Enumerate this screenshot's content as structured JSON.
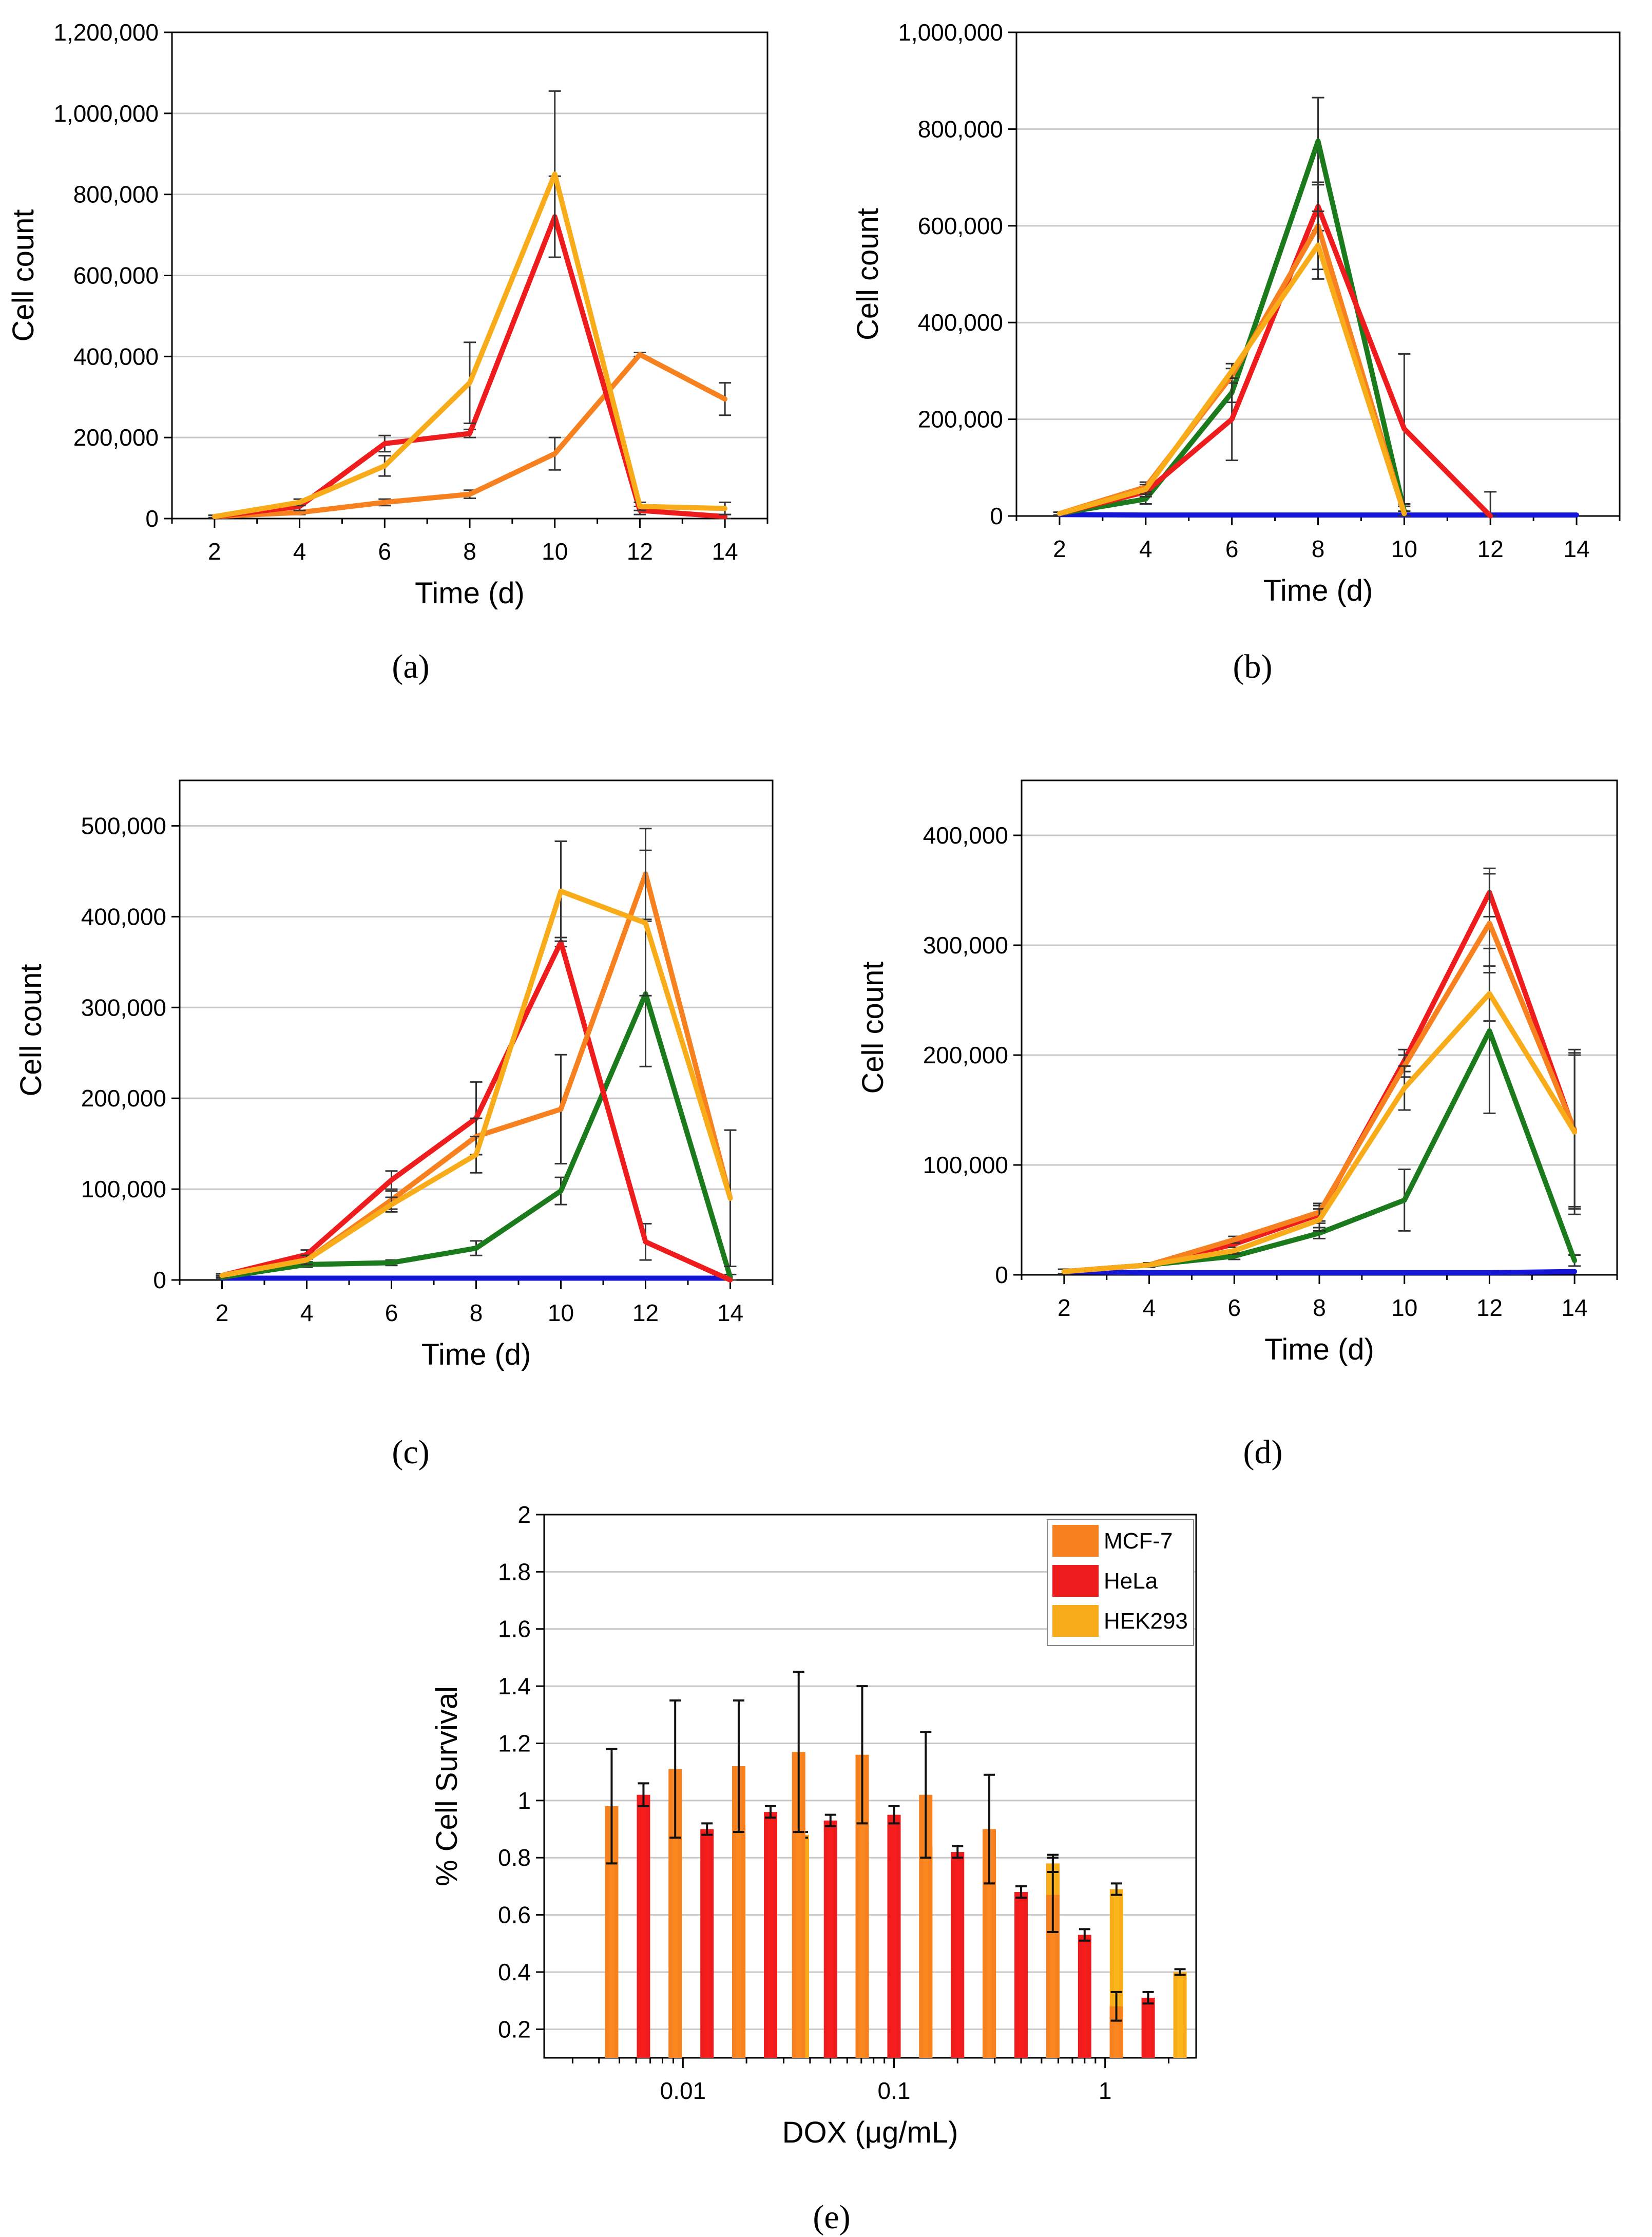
{
  "chart_data": [
    {
      "panel": "a",
      "type": "line",
      "xlabel": "Time (d)",
      "ylabel": "Cell count",
      "x": [
        2,
        4,
        6,
        8,
        10,
        12,
        14
      ],
      "xlim": [
        1,
        15
      ],
      "ylim": [
        0,
        1200000
      ],
      "yticks": [
        0,
        200000,
        400000,
        600000,
        800000,
        1000000,
        1200000
      ],
      "ytick_labels": [
        "0",
        "200,000",
        "400,000",
        "600,000",
        "800,000",
        "1,000,000",
        "1,200,000"
      ],
      "xticks": [
        2,
        4,
        6,
        8,
        10,
        12,
        14
      ],
      "grid": true,
      "series": [
        {
          "name": "orange",
          "color": "#f7801f",
          "values": [
            5000,
            15000,
            40000,
            60000,
            160000,
            405000,
            295000
          ],
          "errors": [
            3000,
            5000,
            8000,
            10000,
            40000,
            5000,
            40000
          ]
        },
        {
          "name": "red",
          "color": "#ee1c1c",
          "values": [
            5000,
            30000,
            185000,
            210000,
            745000,
            20000,
            5000
          ],
          "errors": [
            3000,
            10000,
            20000,
            10000,
            100000,
            10000,
            5000
          ]
        },
        {
          "name": "yellow",
          "color": "#f9ac19",
          "values": [
            5000,
            40000,
            130000,
            335000,
            850000,
            30000,
            25000
          ],
          "errors": [
            3000,
            8000,
            25000,
            100000,
            205000,
            10000,
            15000
          ]
        }
      ]
    },
    {
      "panel": "b",
      "type": "line",
      "xlabel": "Time (d)",
      "ylabel": "Cell count",
      "x": [
        2,
        4,
        6,
        8,
        10,
        12,
        14
      ],
      "xlim": [
        1,
        15
      ],
      "ylim": [
        0,
        1000000
      ],
      "yticks": [
        0,
        200000,
        400000,
        600000,
        800000,
        1000000
      ],
      "ytick_labels": [
        "0",
        "200,000",
        "400,000",
        "600,000",
        "800,000",
        "1,000,000"
      ],
      "xticks": [
        2,
        4,
        6,
        8,
        10,
        12,
        14
      ],
      "grid": true,
      "series": [
        {
          "name": "blue",
          "color": "#1515d8",
          "values": [
            3000,
            2000,
            2000,
            2000,
            2000,
            2000,
            2000
          ],
          "errors": [
            0,
            0,
            0,
            0,
            0,
            0,
            0
          ]
        },
        {
          "name": "green",
          "color": "#1b7a1b",
          "values": [
            5000,
            35000,
            255000,
            775000,
            10000,
            null,
            null
          ],
          "errors": [
            3000,
            10000,
            20000,
            90000,
            10000,
            0,
            0
          ]
        },
        {
          "name": "red",
          "color": "#ee1c1c",
          "values": [
            5000,
            50000,
            200000,
            640000,
            180000,
            0,
            null
          ],
          "errors": [
            3000,
            10000,
            85000,
            50000,
            155000,
            50000,
            0
          ]
        },
        {
          "name": "orange",
          "color": "#f7801f",
          "values": [
            5000,
            60000,
            290000,
            600000,
            5000,
            null,
            null
          ],
          "errors": [
            3000,
            10000,
            15000,
            90000,
            5000,
            0,
            0
          ]
        },
        {
          "name": "yellow",
          "color": "#f9ac19",
          "values": [
            5000,
            55000,
            300000,
            560000,
            5000,
            null,
            null
          ],
          "errors": [
            3000,
            10000,
            15000,
            70000,
            5000,
            0,
            0
          ]
        }
      ]
    },
    {
      "panel": "c",
      "type": "line",
      "xlabel": "Time (d)",
      "ylabel": "Cell count",
      "x": [
        2,
        4,
        6,
        8,
        10,
        12,
        14
      ],
      "xlim": [
        1,
        15
      ],
      "ylim": [
        0,
        550000
      ],
      "yticks": [
        0,
        100000,
        200000,
        300000,
        400000,
        500000
      ],
      "ytick_labels": [
        "0",
        "100,000",
        "200,000",
        "300,000",
        "400,000",
        "500,000"
      ],
      "xticks": [
        2,
        4,
        6,
        8,
        10,
        12,
        14
      ],
      "grid": true,
      "series": [
        {
          "name": "blue",
          "color": "#1515d8",
          "values": [
            2000,
            2000,
            2000,
            2000,
            2000,
            2000,
            2000
          ],
          "errors": [
            0,
            0,
            0,
            0,
            0,
            0,
            0
          ]
        },
        {
          "name": "green",
          "color": "#1b7a1b",
          "values": [
            3000,
            17000,
            19000,
            35000,
            98000,
            315000,
            3000
          ],
          "errors": [
            2000,
            3000,
            3000,
            8000,
            15000,
            80000,
            3000
          ]
        },
        {
          "name": "red",
          "color": "#ee1c1c",
          "values": [
            5000,
            28000,
            110000,
            178000,
            372000,
            42000,
            0
          ],
          "errors": [
            2000,
            5000,
            10000,
            40000,
            5000,
            20000,
            0
          ]
        },
        {
          "name": "orange",
          "color": "#f7801f",
          "values": [
            5000,
            22000,
            88000,
            158000,
            188000,
            447000,
            90000
          ],
          "errors": [
            2000,
            5000,
            10000,
            20000,
            60000,
            50000,
            75000
          ]
        },
        {
          "name": "yellow",
          "color": "#f9ac19",
          "values": [
            5000,
            22000,
            83000,
            138000,
            428000,
            393000,
            90000
          ],
          "errors": [
            2000,
            5000,
            8000,
            20000,
            55000,
            80000,
            75000
          ]
        }
      ]
    },
    {
      "panel": "d",
      "type": "line",
      "xlabel": "Time (d)",
      "ylabel": "Cell count",
      "x": [
        2,
        4,
        6,
        8,
        10,
        12,
        14
      ],
      "xlim": [
        1,
        15
      ],
      "ylim": [
        0,
        450000
      ],
      "yticks": [
        0,
        100000,
        200000,
        300000,
        400000
      ],
      "ytick_labels": [
        "0",
        "100,000",
        "200,000",
        "300,000",
        "400,000"
      ],
      "xticks": [
        2,
        4,
        6,
        8,
        10,
        12,
        14
      ],
      "grid": true,
      "series": [
        {
          "name": "blue",
          "color": "#1515d8",
          "values": [
            3000,
            2000,
            2000,
            2000,
            2000,
            2000,
            3000
          ],
          "errors": [
            0,
            0,
            0,
            0,
            0,
            0,
            0
          ]
        },
        {
          "name": "green",
          "color": "#1b7a1b",
          "values": [
            3000,
            9000,
            17000,
            38000,
            68000,
            222000,
            13000
          ],
          "errors": [
            2000,
            2000,
            3000,
            5000,
            28000,
            75000,
            5000
          ]
        },
        {
          "name": "red",
          "color": "#ee1c1c",
          "values": [
            3000,
            9000,
            28000,
            55000,
            195000,
            348000,
            130000
          ],
          "errors": [
            2000,
            2000,
            3000,
            8000,
            10000,
            22000,
            70000
          ]
        },
        {
          "name": "orange",
          "color": "#f7801f",
          "values": [
            3000,
            9000,
            32000,
            57000,
            190000,
            320000,
            132000
          ],
          "errors": [
            2000,
            2000,
            3000,
            8000,
            10000,
            45000,
            70000
          ]
        },
        {
          "name": "yellow",
          "color": "#f9ac19",
          "values": [
            3000,
            9000,
            22000,
            50000,
            170000,
            256000,
            130000
          ],
          "errors": [
            2000,
            2000,
            3000,
            10000,
            20000,
            25000,
            75000
          ]
        }
      ]
    },
    {
      "panel": "e",
      "type": "bar",
      "xlabel": "DOX (μg/mL)",
      "ylabel": "% Cell Survival",
      "xscale": "log",
      "xlim": [
        0.0022,
        2.7
      ],
      "ylim": [
        0.1,
        2.0
      ],
      "yticks": [
        0.2,
        0.4,
        0.6,
        0.8,
        1.0,
        1.2,
        1.4,
        1.6,
        1.8,
        2.0
      ],
      "ytick_labels": [
        "0.2",
        "0.4",
        "0.6",
        "0.8",
        "1",
        "1.2",
        "1.4",
        "1.6",
        "1.8",
        "2"
      ],
      "xticks": [
        0.01,
        0.1,
        1
      ],
      "xtick_labels": [
        "0.01",
        "0.1",
        "1"
      ],
      "grid": true,
      "legend_position": "top-right",
      "concentrations": [
        0.0065,
        0.013,
        0.026,
        0.05,
        0.1,
        0.2,
        0.4,
        0.8,
        1.6
      ],
      "series": [
        {
          "name": "MCF-7",
          "color": "#f7801f",
          "values": [
            0.98,
            1.11,
            1.12,
            1.17,
            1.16,
            1.02,
            0.9,
            0.67,
            0.28
          ],
          "errors": [
            0.2,
            0.24,
            0.23,
            0.28,
            0.24,
            0.22,
            0.19,
            0.13,
            0.05
          ]
        },
        {
          "name": "HeLa",
          "color": "#ee1c1c",
          "values": [
            1.02,
            0.9,
            0.96,
            0.93,
            0.95,
            0.82,
            0.68,
            0.53,
            0.31
          ],
          "errors": [
            0.04,
            0.02,
            0.02,
            0.02,
            0.03,
            0.02,
            0.02,
            0.02,
            0.02
          ]
        },
        {
          "name": "HEK293",
          "color": "#f9ac19",
          "values": [
            0.99,
            0.91,
            0.88,
            0.85,
            0.84,
            0.8,
            0.78,
            0.69,
            0.4
          ],
          "errors": [
            0.01,
            0.02,
            0.01,
            0.02,
            0.02,
            0.02,
            0.03,
            0.02,
            0.01
          ]
        }
      ]
    }
  ],
  "panel_labels": [
    "(a)",
    "(b)",
    "(c)",
    "(d)",
    "(e)"
  ]
}
